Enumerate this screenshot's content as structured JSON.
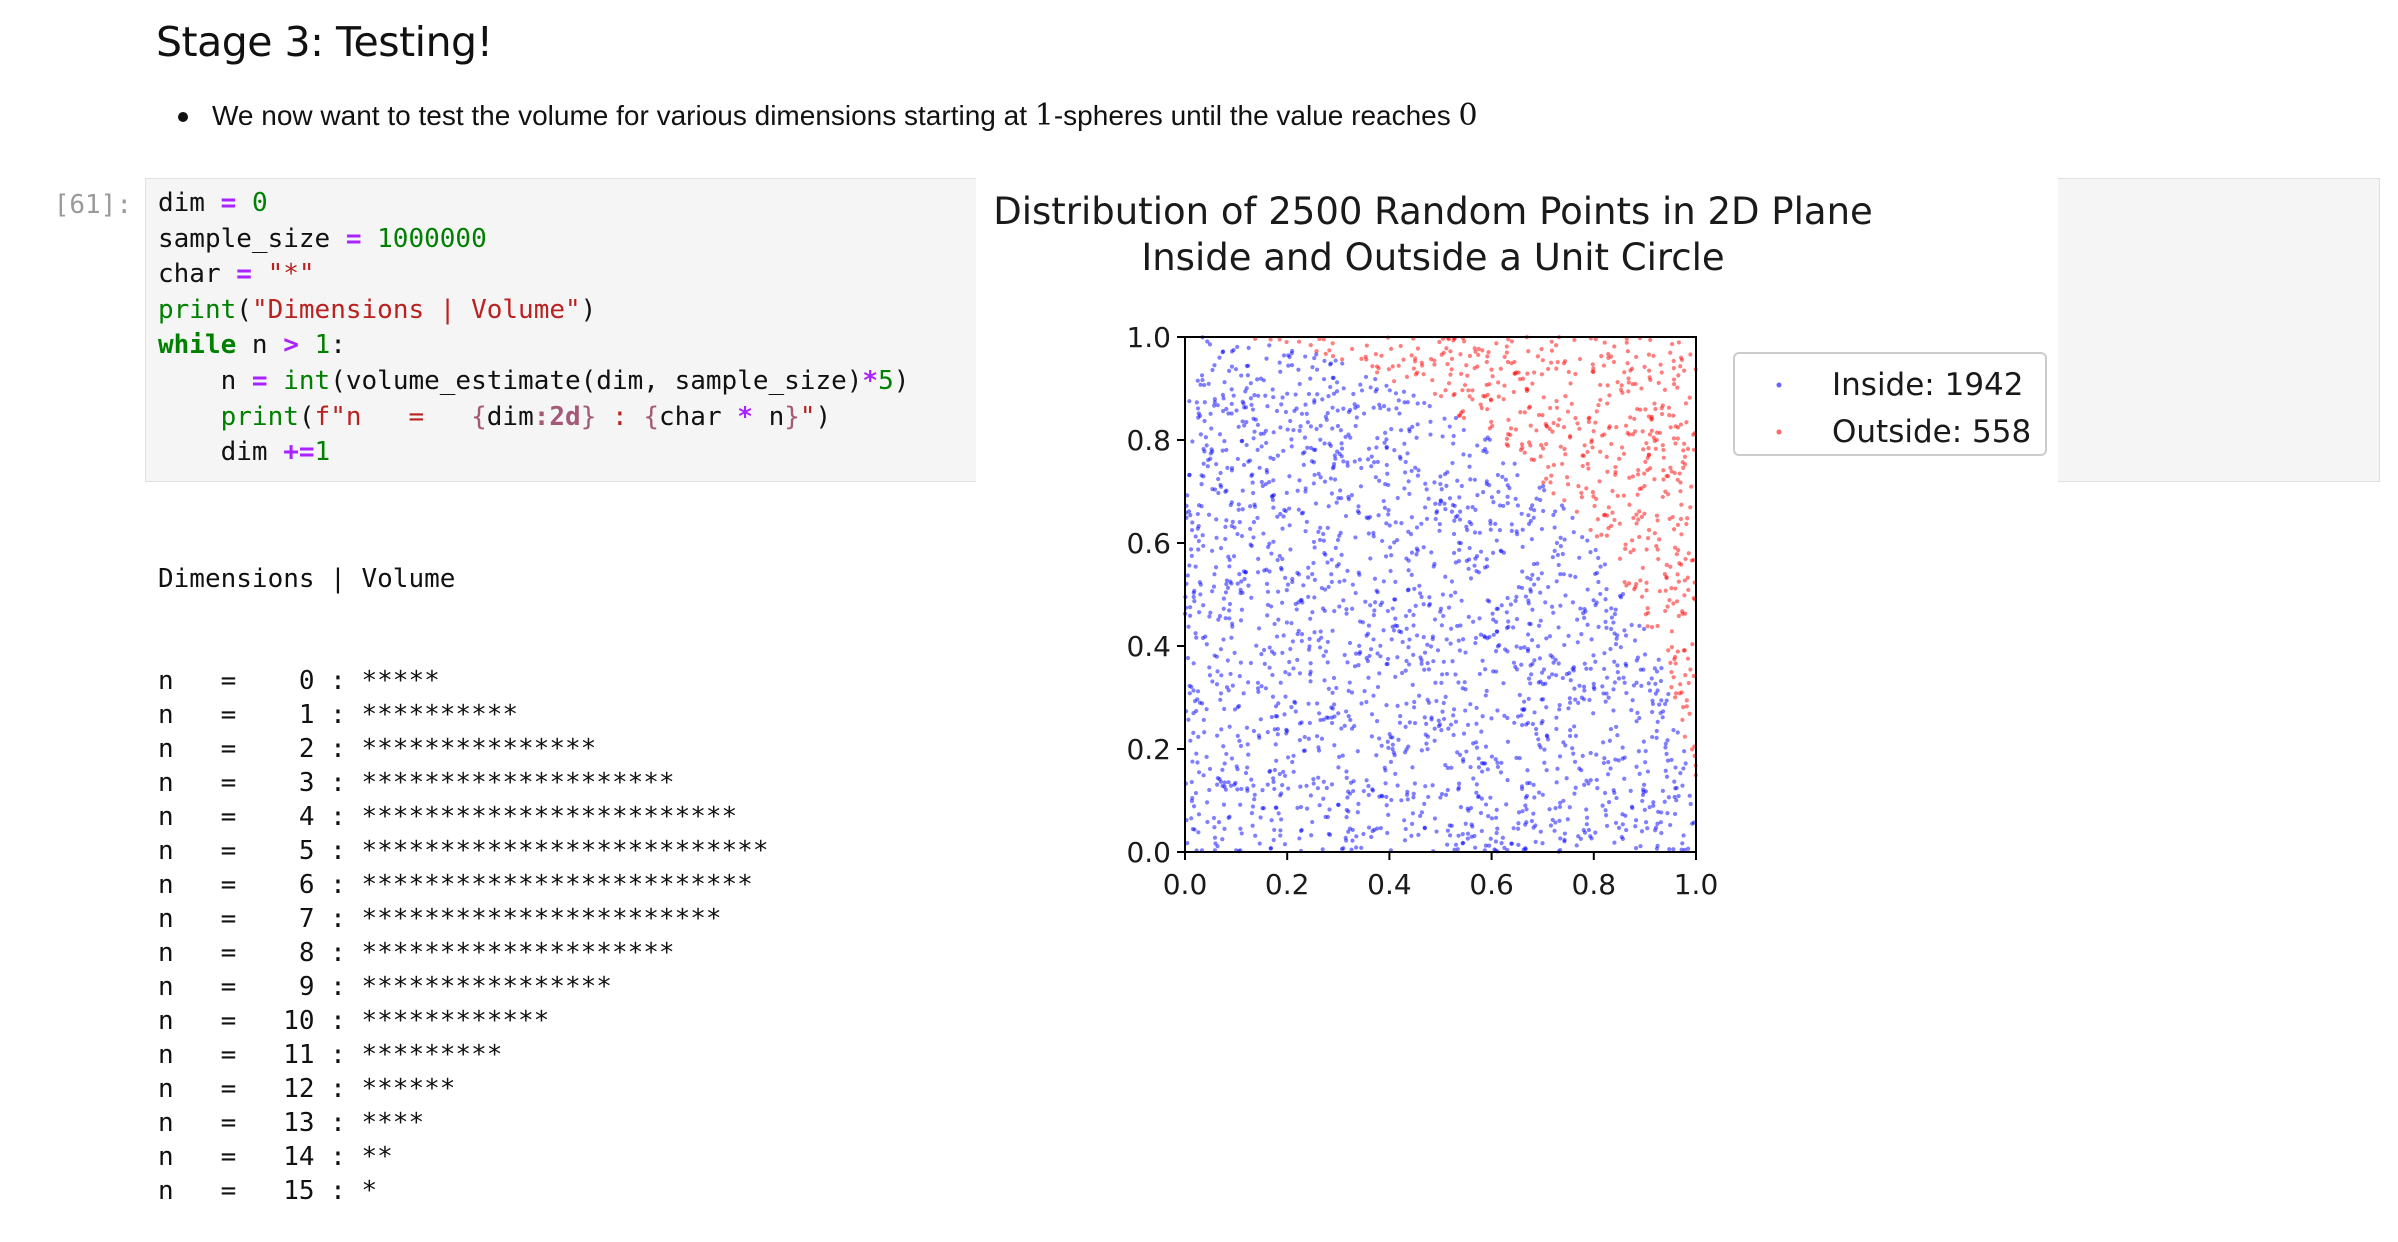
{
  "heading": "Stage 3: Testing!",
  "bullet": {
    "pre": "We now want to test the volume for various dimensions starting at ",
    "math1": "1",
    "mid": "-spheres until the value reaches ",
    "math2": "0"
  },
  "cell": {
    "prompt": "[61]:",
    "code_lines": [
      "dim = 0",
      "sample_size = 1000000",
      "char = \"*\"",
      "print(\"Dimensions | Volume\")",
      "while n > 1:",
      "    n = int(volume_estimate(dim, sample_size)*5)",
      "    print(f\"n   =   {dim:2d} : {char * n}\")",
      "    dim +=1"
    ]
  },
  "output": {
    "header": "Dimensions | Volume",
    "rows": [
      {
        "prefix": "n   =    0 : ",
        "stars": "*****"
      },
      {
        "prefix": "n   =    1 : ",
        "stars": "**********"
      },
      {
        "prefix": "n   =    2 : ",
        "stars": "***************"
      },
      {
        "prefix": "n   =    3 : ",
        "stars": "********************"
      },
      {
        "prefix": "n   =    4 : ",
        "stars": "************************"
      },
      {
        "prefix": "n   =    5 : ",
        "stars": "**************************"
      },
      {
        "prefix": "n   =    6 : ",
        "stars": "*************************"
      },
      {
        "prefix": "n   =    7 : ",
        "stars": "***********************"
      },
      {
        "prefix": "n   =    8 : ",
        "stars": "********************"
      },
      {
        "prefix": "n   =    9 : ",
        "stars": "****************"
      },
      {
        "prefix": "n   =   10 : ",
        "stars": "************"
      },
      {
        "prefix": "n   =   11 : ",
        "stars": "*********"
      },
      {
        "prefix": "n   =   12 : ",
        "stars": "******"
      },
      {
        "prefix": "n   =   13 : ",
        "stars": "****"
      },
      {
        "prefix": "n   =   14 : ",
        "stars": "**"
      },
      {
        "prefix": "n   =   15 : ",
        "stars": "*"
      }
    ]
  },
  "chart_data": {
    "type": "scatter",
    "title": "Distribution of 2500 Random Points in 2D Plane\nInside and Outside a Unit Circle",
    "title_lines": [
      "Distribution of 2500 Random Points in 2D Plane",
      "Inside and Outside a Unit Circle"
    ],
    "xlabel": "",
    "ylabel": "",
    "xlim": [
      0,
      1
    ],
    "ylim": [
      0,
      1
    ],
    "xticks": [
      "0.0",
      "0.2",
      "0.4",
      "0.6",
      "0.8",
      "1.0"
    ],
    "yticks": [
      "0.0",
      "0.2",
      "0.4",
      "0.6",
      "0.8",
      "1.0"
    ],
    "grid": false,
    "legend_position": "outside-right",
    "total_points": 2500,
    "series": [
      {
        "name": "Inside: 1942",
        "count": 1942,
        "color": "#0000ff",
        "region": "x^2 + y^2 <= 1"
      },
      {
        "name": "Outside: 558",
        "count": 558,
        "color": "#ff0000",
        "region": "x^2 + y^2 > 1"
      }
    ]
  }
}
